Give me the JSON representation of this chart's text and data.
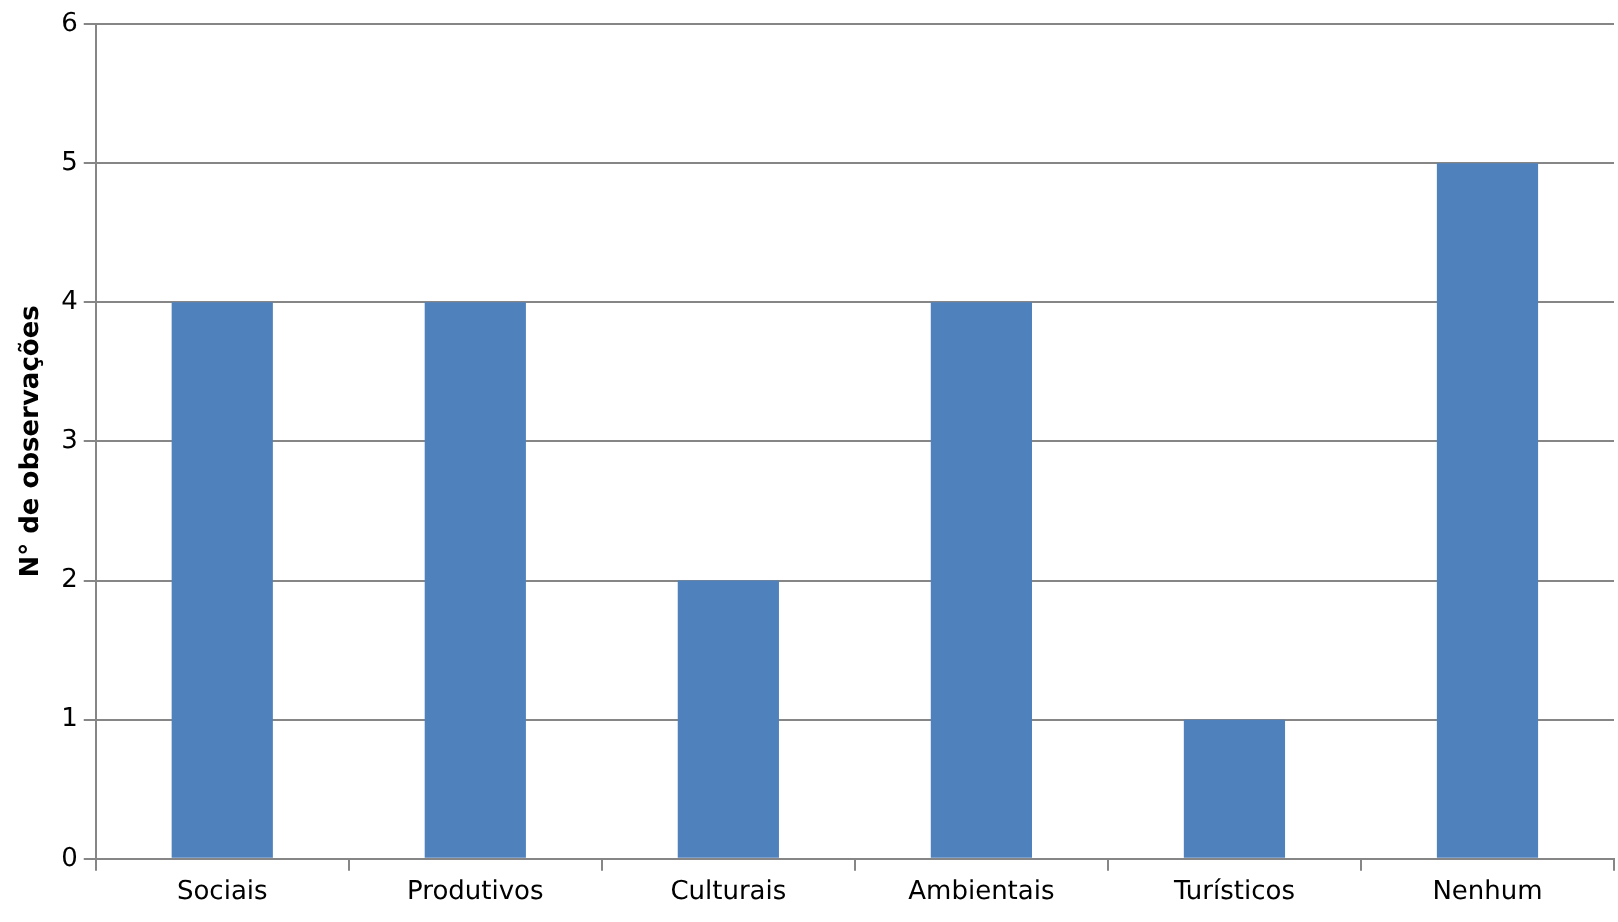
{
  "chart_data": {
    "type": "bar",
    "ylabel": "N° de observações",
    "categories": [
      "Sociais",
      "Produtivos",
      "Culturais",
      "Ambientais",
      "Turísticos",
      "Nenhum"
    ],
    "values": [
      4,
      4,
      2,
      4,
      1,
      5
    ],
    "color": "#4f81bd",
    "ylim": [
      0,
      6
    ],
    "yticks": [
      0,
      1,
      2,
      3,
      4,
      5,
      6
    ],
    "grid": "y",
    "legend": false
  }
}
